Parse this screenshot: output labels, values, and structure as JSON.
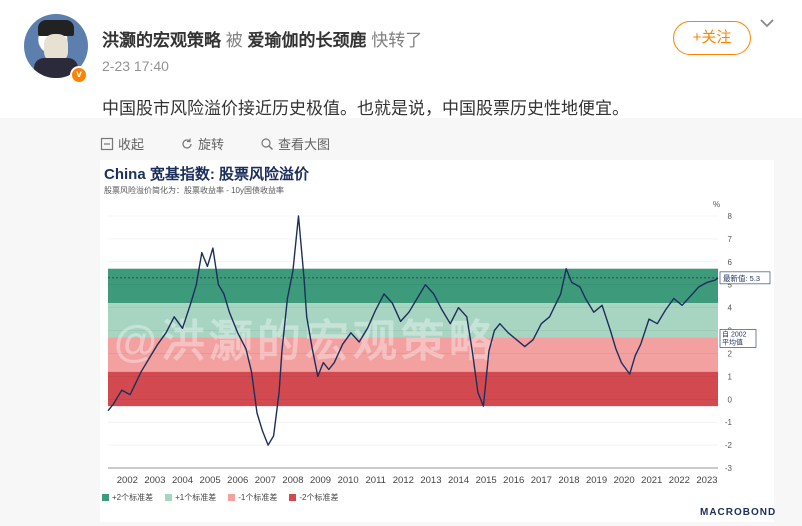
{
  "post": {
    "author": "洪灏的宏观策略",
    "by_word": "被",
    "quoted_author": "爱瑜伽的长颈鹿",
    "reposted_word": "快转了",
    "time": "2-23 17:40",
    "follow_label": "+关注",
    "text": "中国股市风险溢价接近历史极值。也就是说，中国股票历史性地便宜。"
  },
  "toolbar": {
    "collapse_label": "收起",
    "rotate_label": "旋转",
    "view_large_label": "查看大图"
  },
  "colors": {
    "accent": "#ff8200",
    "band_plus2": "#3d9a7a",
    "band_plus1": "#a8d5c2",
    "band_minus1": "#f2a0a0",
    "band_minus2": "#d24a4f",
    "line": "#1c2f5c"
  },
  "chart_data": {
    "type": "line",
    "title": "China 宽基指数: 股票风险溢价",
    "subtitle": "股票风险溢价简化为：股票收益率 - 10y国债收益率",
    "ylabel": "%",
    "ylim": [
      -3,
      8
    ],
    "y_ticks": [
      "-3",
      "-2",
      "-1",
      "0",
      "1",
      "2",
      "3",
      "4",
      "5",
      "6",
      "7",
      "8"
    ],
    "x_ticks": [
      "2002",
      "2003",
      "2004",
      "2005",
      "2006",
      "2007",
      "2008",
      "2009",
      "2010",
      "2011",
      "2012",
      "2013",
      "2014",
      "2015",
      "2016",
      "2017",
      "2018",
      "2019",
      "2020",
      "2021",
      "2022",
      "2023"
    ],
    "xlim": [
      2001.8,
      2023.9
    ],
    "mean": 2.7,
    "std": 1.5,
    "latest_value": 5.3,
    "latest_label": "最新值: 5.3",
    "mean_label": "自 2002 平均值",
    "legend": [
      "+2个标准差",
      "+1个标准差",
      "-1个标准差",
      "-2个标准差"
    ],
    "watermark": "@洪灏的宏观策略",
    "source": "MACROBOND",
    "series": [
      {
        "x": [
          2001.8,
          2002.0,
          2002.3,
          2002.6,
          2003.0,
          2003.3,
          2003.6,
          2003.9,
          2004.2,
          2004.5,
          2004.8,
          2005.0,
          2005.2,
          2005.4,
          2005.6,
          2005.8,
          2006.0,
          2006.2,
          2006.5,
          2006.8,
          2007.0,
          2007.2,
          2007.4,
          2007.6,
          2007.8,
          2008.0,
          2008.1,
          2008.3,
          2008.5,
          2008.7,
          2008.9,
          2009.0,
          2009.2,
          2009.4,
          2009.6,
          2009.8,
          2010.0,
          2010.3,
          2010.6,
          2010.9,
          2011.2,
          2011.5,
          2011.8,
          2012.1,
          2012.4,
          2012.7,
          2013.0,
          2013.3,
          2013.6,
          2013.9,
          2014.2,
          2014.5,
          2014.8,
          2015.0,
          2015.2,
          2015.4,
          2015.6,
          2015.8,
          2016.0,
          2016.3,
          2016.6,
          2016.9,
          2017.2,
          2017.5,
          2017.8,
          2018.0,
          2018.2,
          2018.4,
          2018.6,
          2018.9,
          2019.1,
          2019.4,
          2019.7,
          2020.0,
          2020.2,
          2020.4,
          2020.7,
          2020.9,
          2021.1,
          2021.4,
          2021.7,
          2022.0,
          2022.3,
          2022.6,
          2022.9,
          2023.2,
          2023.5,
          2023.8,
          2023.9
        ],
        "values": [
          -0.5,
          -0.2,
          0.4,
          0.2,
          1.2,
          1.8,
          2.4,
          2.9,
          3.6,
          3.1,
          4.2,
          5.0,
          6.4,
          5.8,
          6.6,
          5.0,
          4.6,
          3.8,
          2.9,
          2.2,
          1.2,
          -0.6,
          -1.4,
          -2.0,
          -1.6,
          0.3,
          2.1,
          4.4,
          5.6,
          8.0,
          5.3,
          3.6,
          2.2,
          1.0,
          1.6,
          1.3,
          1.6,
          2.4,
          2.9,
          2.5,
          3.1,
          3.9,
          4.6,
          4.2,
          3.4,
          3.8,
          4.4,
          5.0,
          4.6,
          3.9,
          3.3,
          4.0,
          3.6,
          2.1,
          0.3,
          -0.3,
          2.1,
          3.0,
          3.3,
          2.9,
          2.6,
          2.3,
          2.6,
          3.3,
          3.6,
          4.1,
          4.6,
          5.7,
          5.1,
          4.9,
          4.4,
          3.8,
          4.1,
          3.0,
          2.2,
          1.6,
          1.1,
          1.9,
          2.4,
          3.5,
          3.3,
          3.9,
          4.4,
          4.1,
          4.5,
          4.9,
          5.1,
          5.2,
          5.3
        ]
      }
    ]
  }
}
